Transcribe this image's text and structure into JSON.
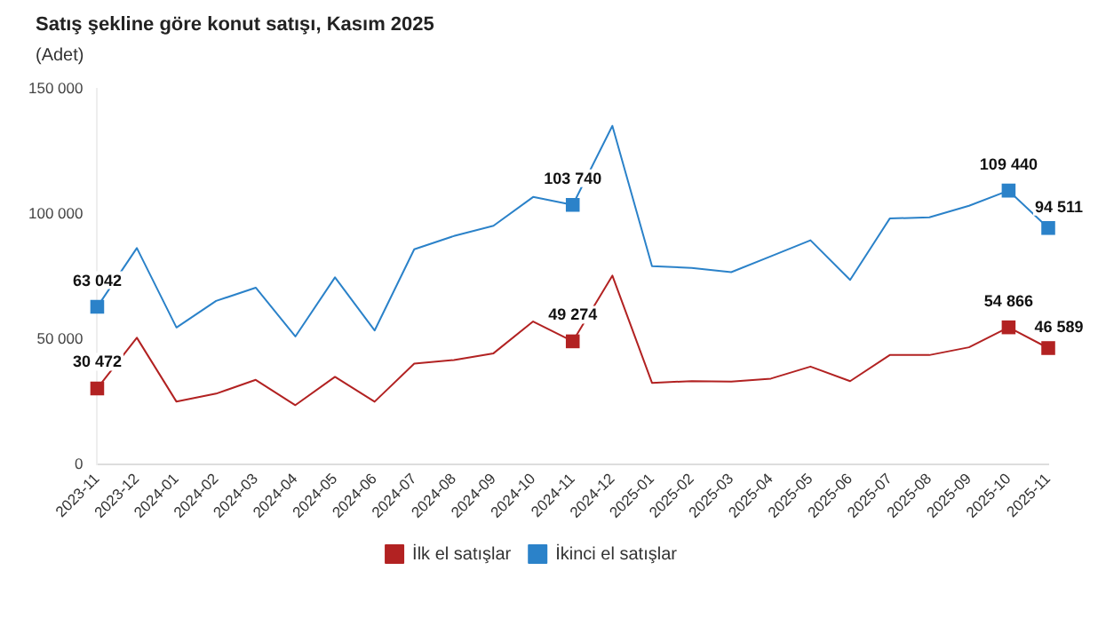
{
  "chart_data": {
    "type": "line",
    "title": "Satış şekline göre konut satışı, Kasım 2025",
    "subtitle": "(Adet)",
    "categories": [
      "2023-11",
      "2023-12",
      "2024-01",
      "2024-02",
      "2024-03",
      "2024-04",
      "2024-05",
      "2024-06",
      "2024-07",
      "2024-08",
      "2024-09",
      "2024-10",
      "2024-11",
      "2024-12",
      "2025-01",
      "2025-02",
      "2025-03",
      "2025-04",
      "2025-05",
      "2025-06",
      "2025-07",
      "2025-08",
      "2025-09",
      "2025-10",
      "2025-11"
    ],
    "series": [
      {
        "name": "İlk el satışlar",
        "color": "#b22222",
        "values": [
          30472,
          50700,
          25200,
          28400,
          33900,
          23800,
          35100,
          25200,
          40400,
          41800,
          44500,
          57200,
          49274,
          75500,
          32700,
          33400,
          33200,
          34400,
          39200,
          33400,
          43800,
          43800,
          46900,
          54866,
          46589
        ],
        "value_labels": [
          "30 472",
          null,
          null,
          null,
          null,
          null,
          null,
          null,
          null,
          null,
          null,
          null,
          "49 274",
          null,
          null,
          null,
          null,
          null,
          null,
          null,
          null,
          null,
          null,
          "54 866",
          "46 589"
        ]
      },
      {
        "name": "İkinci el satışlar",
        "color": "#2b82c9",
        "values": [
          63042,
          86500,
          54800,
          65400,
          70700,
          51200,
          74800,
          53600,
          86000,
          91300,
          95400,
          106900,
          103740,
          135300,
          79300,
          78600,
          76900,
          83200,
          89600,
          73800,
          98300,
          98800,
          103400,
          109440,
          94511
        ],
        "value_labels": [
          "63 042",
          null,
          null,
          null,
          null,
          null,
          null,
          null,
          null,
          null,
          null,
          null,
          "103 740",
          null,
          null,
          null,
          null,
          null,
          null,
          null,
          null,
          null,
          null,
          "109 440",
          "94 511"
        ]
      }
    ],
    "ylim": [
      0,
      150000
    ],
    "yticks": [
      {
        "value": 0,
        "label": "0"
      },
      {
        "value": 50000,
        "label": "50 000"
      },
      {
        "value": 100000,
        "label": "100 000"
      },
      {
        "value": 150000,
        "label": "150 000"
      }
    ],
    "grid": false,
    "legend": "bottom",
    "line_style": "solid"
  }
}
